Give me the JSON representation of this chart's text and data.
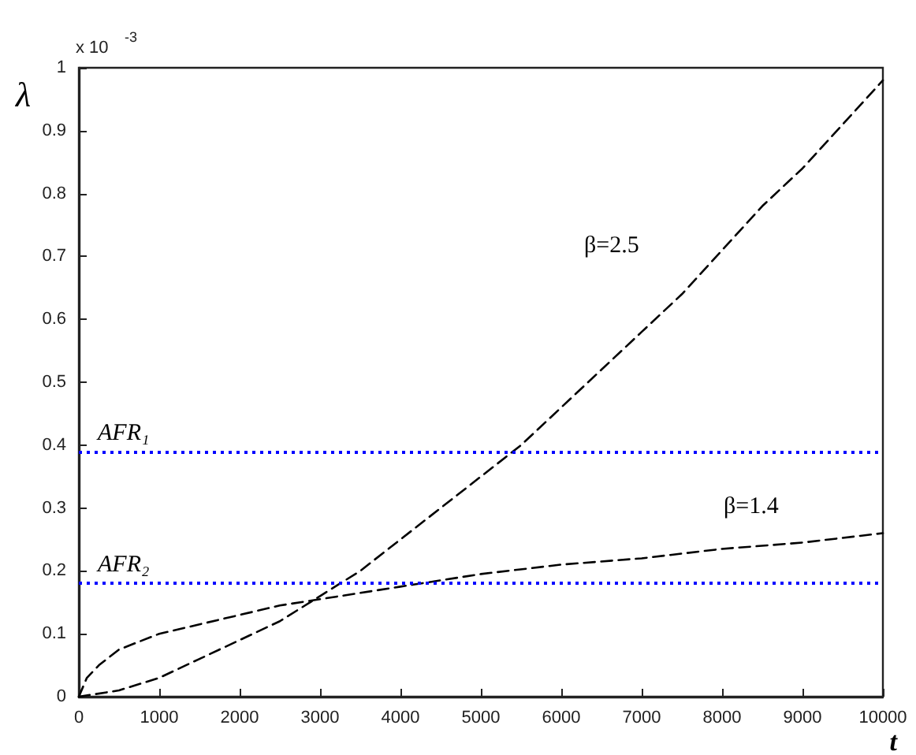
{
  "chart_data": {
    "type": "line",
    "xlabel": "t",
    "ylabel": "λ",
    "annotations": [
      "x 10$^{-3}$"
    ],
    "xlim": [
      0,
      10000
    ],
    "xticks": [
      0,
      1000,
      2000,
      3000,
      4000,
      5000,
      6000,
      7000,
      8000,
      9000,
      10000
    ],
    "ylim": [
      0,
      1
    ],
    "yticks": [
      0,
      0.1,
      0.2,
      0.3,
      0.4,
      0.5,
      0.6,
      0.7,
      0.8,
      0.9,
      1
    ],
    "grid": false,
    "legend": false,
    "marker": "none",
    "series": [
      {
        "name": "β=2.5",
        "color": "#000000",
        "line_style": "dashed",
        "x": [
          0,
          500,
          1000,
          1500,
          2000,
          2500,
          3000,
          3500,
          4000,
          4500,
          5000,
          5500,
          6000,
          6500,
          7000,
          7500,
          8000,
          8500,
          9000,
          9500,
          10000
        ],
        "values": [
          0,
          0.01,
          0.03,
          0.06,
          0.09,
          0.12,
          0.16,
          0.2,
          0.25,
          0.3,
          0.35,
          0.4,
          0.46,
          0.52,
          0.58,
          0.64,
          0.71,
          0.78,
          0.84,
          0.91,
          0.98
        ]
      },
      {
        "name": "β=1.4",
        "color": "#000000",
        "line_style": "dashed",
        "x": [
          0,
          100,
          250,
          500,
          1000,
          1500,
          2000,
          2500,
          3000,
          3500,
          4000,
          4500,
          5000,
          6000,
          7000,
          8000,
          9000,
          10000
        ],
        "values": [
          0,
          0.03,
          0.05,
          0.075,
          0.1,
          0.115,
          0.13,
          0.145,
          0.155,
          0.165,
          0.175,
          0.185,
          0.195,
          0.21,
          0.22,
          0.235,
          0.245,
          0.26
        ]
      }
    ],
    "ref_lines": [
      {
        "axis": "y",
        "value": 0.39,
        "label": "AFR₁",
        "color": "#0000ff",
        "line_style": "dotted"
      },
      {
        "axis": "y",
        "value": 0.185,
        "label": "AFR₂",
        "color": "#0000ff",
        "line_style": "dotted"
      }
    ]
  }
}
